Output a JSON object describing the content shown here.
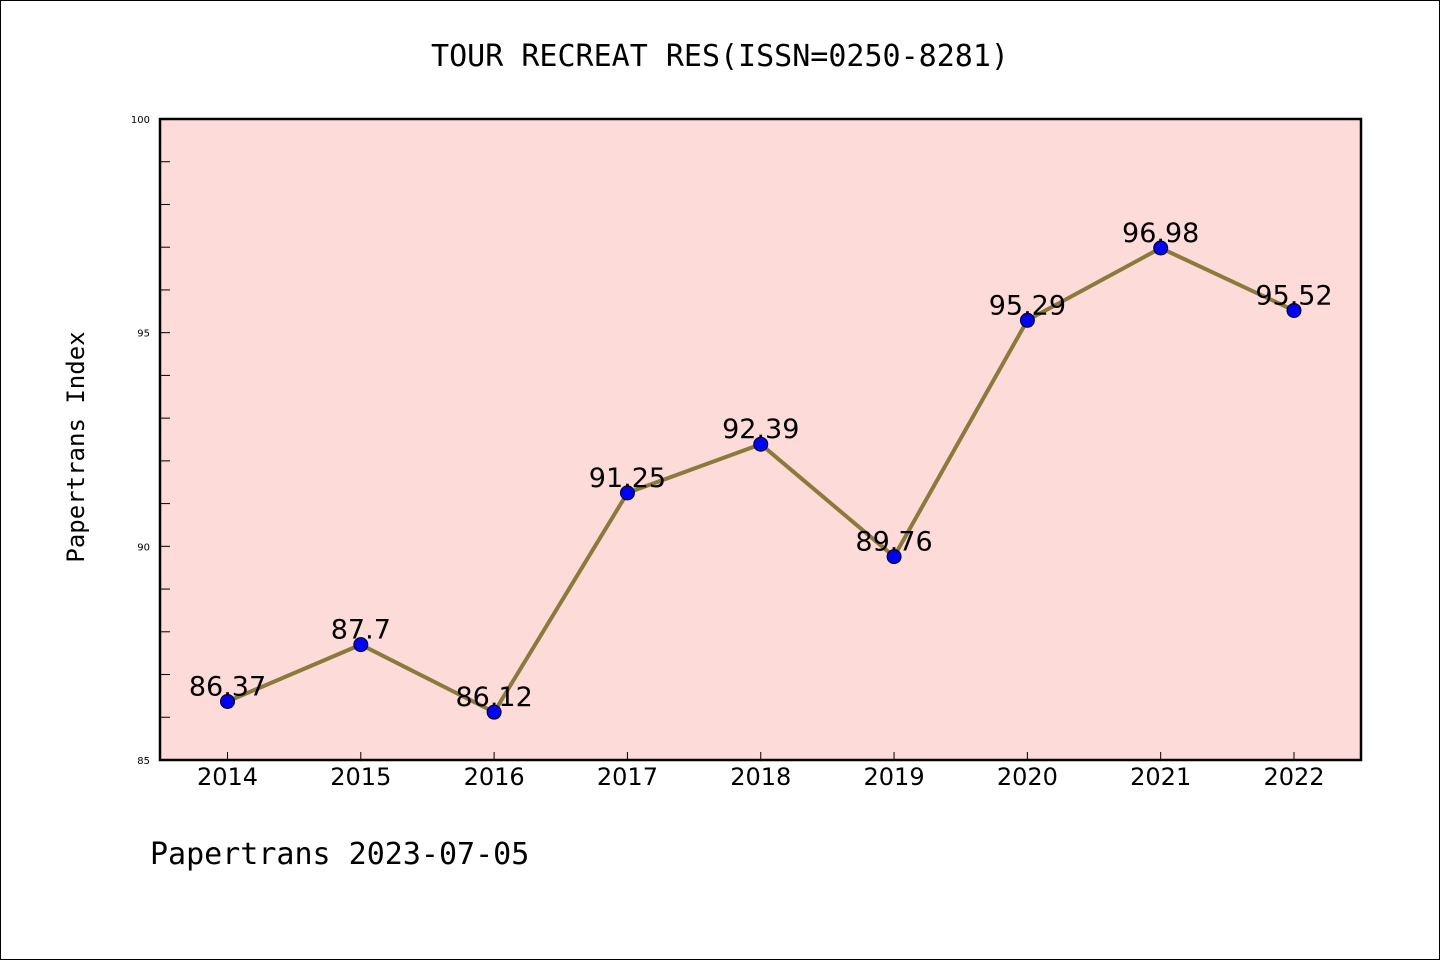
{
  "footer": "Papertrans 2023-07-05",
  "chart_data": {
    "type": "line",
    "title": "TOUR RECREAT RES(ISSN=0250-8281)",
    "xlabel": "",
    "ylabel": "Papertrans Index",
    "categories": [
      "2014",
      "2015",
      "2016",
      "2017",
      "2018",
      "2019",
      "2020",
      "2021",
      "2022"
    ],
    "values": [
      86.37,
      87.7,
      86.12,
      91.25,
      92.39,
      89.76,
      95.29,
      96.98,
      95.52
    ],
    "data_labels": [
      "86.37",
      "87.7",
      "86.12",
      "91.25",
      "92.39",
      "89.76",
      "95.29",
      "96.98",
      "95.52"
    ],
    "ylim": [
      85,
      100
    ],
    "yticks": [
      "85",
      "90",
      "95",
      "100"
    ],
    "grid": false,
    "legend": "none",
    "colors": {
      "background": "#fddbd8",
      "line": "#8b7a3a",
      "marker": "#0000ff"
    }
  }
}
